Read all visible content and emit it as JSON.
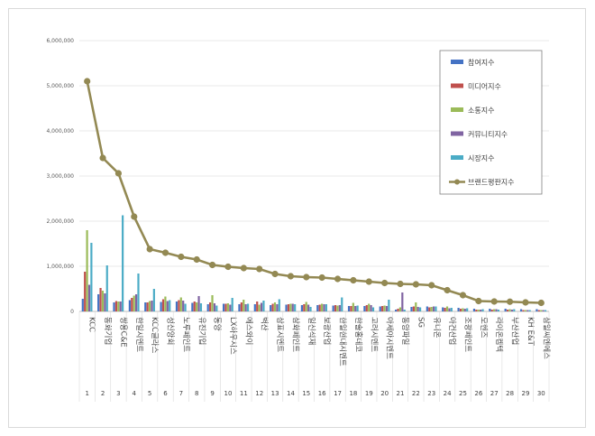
{
  "chart_data": {
    "type": "bar",
    "yticks": [
      "0",
      "1,000,000",
      "2,000,000",
      "3,000,000",
      "4,000,000",
      "5,000,000",
      "6,000,000"
    ],
    "ylim": [
      0,
      6000000
    ],
    "categories": [
      "KCC",
      "동화기업",
      "쌍용C&E",
      "한일시멘트",
      "KCC글라스",
      "성신양회",
      "노루페인트",
      "유진기업",
      "동양",
      "LX하우시스",
      "에스와이",
      "벽산",
      "삼표시멘트",
      "삼화페인트",
      "일신석재",
      "보광산업",
      "한일현대시멘트",
      "한솔홈데코",
      "고려시멘트",
      "아세아시멘트",
      "동양파일",
      "SG",
      "유니온",
      "아건산업",
      "조광페인트",
      "모헨즈",
      "라이온켐텍",
      "부산산업",
      "KH E&T",
      "삼일씨엔에스"
    ],
    "ranks": [
      "1",
      "2",
      "3",
      "4",
      "5",
      "6",
      "7",
      "8",
      "9",
      "10",
      "11",
      "12",
      "13",
      "14",
      "15",
      "16",
      "17",
      "18",
      "19",
      "20",
      "21",
      "22",
      "23",
      "24",
      "25",
      "26",
      "27",
      "28",
      "29",
      "30"
    ],
    "series": [
      {
        "name": "참여지수",
        "color": "#4472c4",
        "values": [
          280000,
          380000,
          200000,
          250000,
          200000,
          210000,
          220000,
          190000,
          160000,
          170000,
          160000,
          160000,
          140000,
          150000,
          140000,
          140000,
          130000,
          120000,
          120000,
          110000,
          40000,
          100000,
          110000,
          90000,
          80000,
          60000,
          60000,
          60000,
          50000,
          50000
        ]
      },
      {
        "name": "미디어지수",
        "color": "#c0504d",
        "values": [
          880000,
          520000,
          230000,
          300000,
          200000,
          270000,
          250000,
          220000,
          200000,
          170000,
          200000,
          220000,
          170000,
          160000,
          160000,
          150000,
          140000,
          120000,
          140000,
          120000,
          60000,
          110000,
          90000,
          80000,
          60000,
          40000,
          40000,
          40000,
          30000,
          30000
        ]
      },
      {
        "name": "소통지수",
        "color": "#9bbb59",
        "values": [
          1800000,
          460000,
          220000,
          350000,
          230000,
          330000,
          310000,
          200000,
          360000,
          180000,
          260000,
          150000,
          200000,
          170000,
          210000,
          170000,
          130000,
          190000,
          170000,
          130000,
          90000,
          200000,
          100000,
          110000,
          70000,
          40000,
          50000,
          50000,
          30000,
          30000
        ]
      },
      {
        "name": "커뮤니티지수",
        "color": "#8064a2",
        "values": [
          590000,
          400000,
          220000,
          380000,
          240000,
          230000,
          240000,
          340000,
          180000,
          150000,
          160000,
          190000,
          160000,
          170000,
          150000,
          160000,
          140000,
          120000,
          140000,
          120000,
          420000,
          100000,
          110000,
          70000,
          60000,
          40000,
          50000,
          40000,
          30000,
          30000
        ]
      },
      {
        "name": "시장지수",
        "color": "#4bacc6",
        "values": [
          1520000,
          1020000,
          2130000,
          840000,
          500000,
          250000,
          170000,
          180000,
          130000,
          300000,
          170000,
          240000,
          270000,
          160000,
          100000,
          160000,
          310000,
          130000,
          90000,
          260000,
          40000,
          90000,
          110000,
          80000,
          70000,
          50000,
          40000,
          50000,
          30000,
          30000
        ]
      }
    ],
    "line": {
      "name": "브랜드평판지수",
      "color": "#938953",
      "values": [
        5100000,
        3400000,
        3060000,
        2100000,
        1380000,
        1300000,
        1210000,
        1150000,
        1030000,
        990000,
        960000,
        940000,
        830000,
        780000,
        760000,
        750000,
        720000,
        690000,
        660000,
        630000,
        610000,
        600000,
        580000,
        470000,
        360000,
        230000,
        220000,
        215000,
        200000,
        190000
      ]
    }
  }
}
